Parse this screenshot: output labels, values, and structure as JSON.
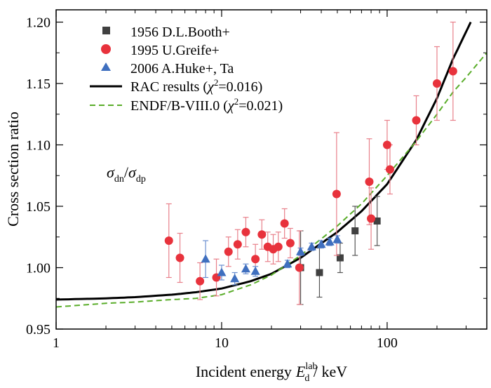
{
  "chart_data": {
    "type": "scatter",
    "xlabel": "Incident energy",
    "xlabel_symbol": "E",
    "xlabel_sub": "d",
    "xlabel_sup": "lab",
    "xlabel_unit": " / keV",
    "ylabel": "Cross section ratio",
    "xscale": "log",
    "xlim": [
      1,
      400
    ],
    "ylim": [
      0.95,
      1.21
    ],
    "x_ticks": [
      1,
      10,
      100
    ],
    "x_tick_labels": [
      "1",
      "10",
      "100"
    ],
    "y_ticks": [
      0.95,
      1.0,
      1.05,
      1.1,
      1.15,
      1.2
    ],
    "y_tick_labels": [
      "0.95",
      "1.00",
      "1.05",
      "1.10",
      "1.15",
      "1.20"
    ],
    "legend_position": "top-left",
    "annotation": {
      "num": "σ",
      "num_sub": "dn",
      "slash": "/",
      "den": "σ",
      "den_sub": "dp"
    },
    "legend_text": {
      "booth": "1956 D.L.Booth+",
      "greife": "1995 U.Greife+",
      "huke": "2006 A.Huke+,  Ta",
      "rac_prefix": "RAC results (",
      "rac_chi": "χ",
      "rac_sup": "2",
      "rac_suffix": "=0.016)",
      "endf_prefix": "ENDF/B-VIII.0 (",
      "endf_chi": "χ",
      "endf_sup": "2",
      "endf_suffix": "=0.021)"
    },
    "series": [
      {
        "name": "1956 D.L.Booth+",
        "kind": "points",
        "marker": "square",
        "color": "#404040",
        "x": [
          30,
          39,
          52,
          64,
          87
        ],
        "y": [
          1.0,
          0.996,
          1.008,
          1.03,
          1.038
        ],
        "err": [
          0.03,
          0.02,
          0.012,
          0.02,
          0.02
        ]
      },
      {
        "name": "1995 U.Greife+",
        "kind": "points",
        "marker": "circle",
        "color": "#e8323c",
        "x": [
          4.8,
          5.6,
          7.4,
          9.3,
          11.0,
          12.5,
          14.0,
          16.0,
          17.5,
          19.0,
          20.5,
          22.0,
          24.0,
          26.0,
          29.5,
          49.5,
          78.0,
          80.0,
          100.0,
          104.0,
          150.0,
          200.0,
          250.0
        ],
        "y": [
          1.022,
          1.008,
          0.989,
          0.992,
          1.013,
          1.019,
          1.029,
          1.007,
          1.027,
          1.017,
          1.015,
          1.017,
          1.036,
          1.02,
          1.0,
          1.06,
          1.07,
          1.04,
          1.1,
          1.08,
          1.12,
          1.15,
          1.16
        ],
        "err": [
          0.03,
          0.02,
          0.015,
          0.015,
          0.012,
          0.012,
          0.012,
          0.012,
          0.012,
          0.012,
          0.012,
          0.012,
          0.012,
          0.012,
          0.03,
          0.05,
          0.035,
          0.025,
          0.02,
          0.02,
          0.02,
          0.03,
          0.04
        ]
      },
      {
        "name": "2006 A.Huke+,  Ta",
        "kind": "points",
        "marker": "triangle",
        "color": "#3f6fbf",
        "x": [
          8.0,
          10.0,
          12.0,
          14.0,
          16.0,
          25.0,
          30.0,
          35.0,
          40.0,
          45.0,
          50.0
        ],
        "y": [
          1.007,
          0.996,
          0.991,
          0.999,
          0.997,
          1.003,
          1.013,
          1.017,
          1.019,
          1.021,
          1.023
        ],
        "err": [
          0.015,
          0.006,
          0.005,
          0.004,
          0.004,
          0.003,
          0.003,
          0.003,
          0.003,
          0.003,
          0.003
        ]
      },
      {
        "name": "RAC results (χ2=0.016)",
        "kind": "line",
        "style": "solid",
        "color": "#000000",
        "x": [
          1,
          2,
          3,
          5,
          7,
          10,
          15,
          20,
          30,
          50,
          70,
          100,
          150,
          200,
          250,
          320
        ],
        "y": [
          0.974,
          0.975,
          0.976,
          0.978,
          0.98,
          0.983,
          0.989,
          0.995,
          1.008,
          1.029,
          1.046,
          1.068,
          1.104,
          1.138,
          1.17,
          1.2
        ]
      },
      {
        "name": "ENDF/B-VIII.0 (χ2=0.021)",
        "kind": "line",
        "style": "dashed",
        "color": "#5aad2a",
        "x": [
          1,
          2,
          3,
          5,
          7,
          10,
          15,
          20,
          30,
          50,
          70,
          100,
          150,
          200,
          250,
          300,
          400
        ],
        "y": [
          0.968,
          0.971,
          0.972,
          0.974,
          0.975,
          0.978,
          0.986,
          0.994,
          1.01,
          1.034,
          1.052,
          1.075,
          1.103,
          1.125,
          1.143,
          1.155,
          1.175
        ]
      }
    ]
  }
}
